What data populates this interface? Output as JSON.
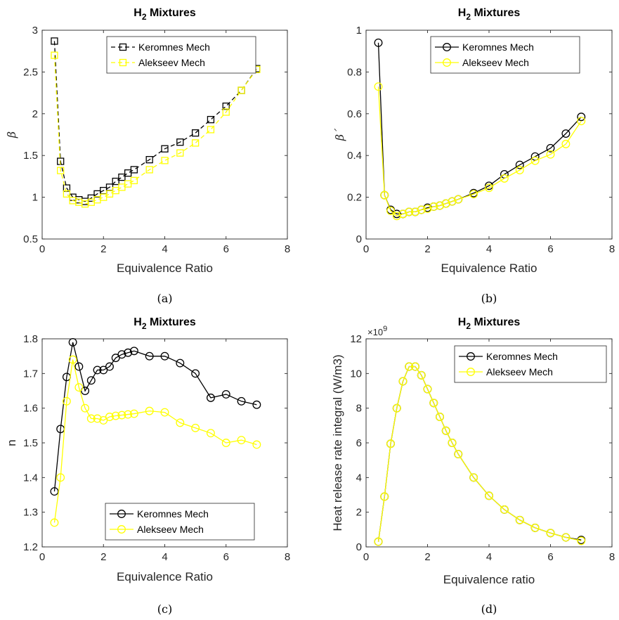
{
  "chart_data": [
    {
      "id": "a",
      "type": "line",
      "title": "H",
      "title_sub": "2",
      "title_rest": " Mixtures",
      "xlabel": "Equivalence Ratio",
      "ylabel": "β",
      "xlim": [
        0,
        8
      ],
      "ylim": [
        0.5,
        3
      ],
      "xticks": [
        0,
        2,
        4,
        6,
        8
      ],
      "yticks": [
        0.5,
        1,
        1.5,
        2,
        2.5,
        3
      ],
      "ytick_labels": [
        "0.5",
        "1",
        "1.5",
        "2",
        "2.5",
        "3"
      ],
      "xtick_labels": [
        "0",
        "2",
        "4",
        "6",
        "8"
      ],
      "legend_position": "top-right",
      "caption": "(a)",
      "x": [
        0.4,
        0.6,
        0.8,
        1.0,
        1.2,
        1.4,
        1.6,
        1.8,
        2.0,
        2.2,
        2.4,
        2.6,
        2.8,
        3.0,
        3.5,
        4.0,
        4.5,
        5.0,
        5.5,
        6.0,
        6.5,
        7.0
      ],
      "series": [
        {
          "name": "Keromnes Mech",
          "color": "#000000",
          "line": "dashed",
          "marker": "square",
          "values": [
            2.87,
            1.43,
            1.11,
            1.0,
            0.97,
            0.95,
            0.99,
            1.04,
            1.08,
            1.12,
            1.19,
            1.24,
            1.29,
            1.33,
            1.45,
            1.58,
            1.66,
            1.77,
            1.93,
            2.09,
            2.28,
            2.54
          ]
        },
        {
          "name": "Alekseev Mech",
          "color": "#FFFF00",
          "line": "dashed",
          "marker": "square",
          "values": [
            2.7,
            1.32,
            1.04,
            0.96,
            0.94,
            0.92,
            0.94,
            0.97,
            1.0,
            1.04,
            1.08,
            1.12,
            1.16,
            1.2,
            1.33,
            1.44,
            1.53,
            1.65,
            1.81,
            2.02,
            2.28,
            2.53
          ]
        }
      ]
    },
    {
      "id": "b",
      "type": "line",
      "title": "H",
      "title_sub": "2",
      "title_rest": " Mixtures",
      "xlabel": "Equivalence Ratio",
      "ylabel": "β´",
      "xlim": [
        0,
        8
      ],
      "ylim": [
        0,
        1
      ],
      "xticks": [
        0,
        2,
        4,
        6,
        8
      ],
      "yticks": [
        0,
        0.2,
        0.4,
        0.6,
        0.8,
        1
      ],
      "ytick_labels": [
        "0",
        "0.2",
        "0.4",
        "0.6",
        "0.8",
        "1"
      ],
      "xtick_labels": [
        "0",
        "2",
        "4",
        "6",
        "8"
      ],
      "legend_position": "top-right",
      "caption": "(b)",
      "x": [
        0.4,
        0.6,
        0.8,
        1.0,
        1.2,
        1.4,
        1.6,
        1.8,
        2.0,
        2.2,
        2.4,
        2.6,
        2.8,
        3.0,
        3.5,
        4.0,
        4.5,
        5.0,
        5.5,
        6.0,
        6.5,
        7.0
      ],
      "series": [
        {
          "name": "Keromnes Mech",
          "color": "#000000",
          "line": "solid",
          "marker": "circle",
          "values": [
            0.94,
            0.21,
            0.14,
            0.12,
            0.12,
            0.13,
            0.13,
            0.14,
            0.15,
            0.155,
            0.16,
            0.17,
            0.18,
            0.19,
            0.22,
            0.255,
            0.31,
            0.355,
            0.395,
            0.435,
            0.505,
            0.585
          ]
        },
        {
          "name": "Alekseev Mech",
          "color": "#FFFF00",
          "line": "solid",
          "marker": "circle",
          "values": [
            0.73,
            0.21,
            0.135,
            0.11,
            0.12,
            0.13,
            0.13,
            0.14,
            0.145,
            0.155,
            0.16,
            0.17,
            0.18,
            0.19,
            0.215,
            0.245,
            0.29,
            0.33,
            0.375,
            0.405,
            0.455,
            0.565
          ]
        }
      ]
    },
    {
      "id": "c",
      "type": "line",
      "title": "H",
      "title_sub": "2",
      "title_rest": " Mixtures",
      "xlabel": "Equivalence Ratio",
      "ylabel": "n",
      "xlim": [
        0,
        8
      ],
      "ylim": [
        1.2,
        1.8
      ],
      "xticks": [
        0,
        2,
        4,
        6,
        8
      ],
      "yticks": [
        1.2,
        1.3,
        1.4,
        1.5,
        1.6,
        1.7,
        1.8
      ],
      "ytick_labels": [
        "1.2",
        "1.3",
        "1.4",
        "1.5",
        "1.6",
        "1.7",
        "1.8"
      ],
      "xtick_labels": [
        "0",
        "2",
        "4",
        "6",
        "8"
      ],
      "legend_position": "bottom-right",
      "caption": "(c)",
      "x": [
        0.4,
        0.6,
        0.8,
        1.0,
        1.2,
        1.4,
        1.6,
        1.8,
        2.0,
        2.2,
        2.4,
        2.6,
        2.8,
        3.0,
        3.5,
        4.0,
        4.5,
        5.0,
        5.5,
        6.0,
        6.5,
        7.0
      ],
      "series": [
        {
          "name": "Keromnes Mech",
          "color": "#000000",
          "line": "solid",
          "marker": "circle",
          "values": [
            1.36,
            1.54,
            1.69,
            1.79,
            1.72,
            1.65,
            1.68,
            1.71,
            1.71,
            1.72,
            1.745,
            1.755,
            1.76,
            1.765,
            1.75,
            1.75,
            1.73,
            1.7,
            1.63,
            1.64,
            1.62,
            1.61
          ]
        },
        {
          "name": "Alekseev Mech",
          "color": "#FFFF00",
          "line": "solid",
          "marker": "circle",
          "values": [
            1.27,
            1.4,
            1.62,
            1.74,
            1.66,
            1.6,
            1.57,
            1.57,
            1.565,
            1.575,
            1.578,
            1.58,
            1.582,
            1.584,
            1.592,
            1.588,
            1.558,
            1.543,
            1.528,
            1.5,
            1.508,
            1.495
          ]
        }
      ]
    },
    {
      "id": "d",
      "type": "line",
      "title": "H",
      "title_sub": "2",
      "title_rest": " Mixtures",
      "xlabel": "Equivalence ratio",
      "ylabel": "Heat release rate integral (W/m3)",
      "y_exponent_base": "×10",
      "y_exponent_power": "9",
      "xlim": [
        0,
        8
      ],
      "ylim": [
        0,
        12
      ],
      "xticks": [
        0,
        2,
        4,
        6,
        8
      ],
      "yticks": [
        0,
        2,
        4,
        6,
        8,
        10,
        12
      ],
      "ytick_labels": [
        "0",
        "2",
        "4",
        "6",
        "8",
        "10",
        "12"
      ],
      "xtick_labels": [
        "0",
        "2",
        "4",
        "6",
        "8"
      ],
      "legend_position": "top-right",
      "caption": "(d)",
      "x": [
        0.4,
        0.6,
        0.8,
        1.0,
        1.2,
        1.4,
        1.6,
        1.8,
        2.0,
        2.2,
        2.4,
        2.6,
        2.8,
        3.0,
        3.5,
        4.0,
        4.5,
        5.0,
        5.5,
        6.0,
        6.5,
        7.0
      ],
      "series": [
        {
          "name": "Keromnes Mech",
          "color": "#000000",
          "line": "solid",
          "marker": "circle",
          "values": [
            0.3,
            2.9,
            5.95,
            8.0,
            9.55,
            10.4,
            10.4,
            9.9,
            9.1,
            8.3,
            7.5,
            6.7,
            6.0,
            5.35,
            4.0,
            2.95,
            2.15,
            1.55,
            1.1,
            0.8,
            0.55,
            0.4
          ]
        },
        {
          "name": "Alekseev Mech",
          "color": "#FFFF00",
          "line": "solid",
          "marker": "circle",
          "values": [
            0.3,
            2.9,
            5.95,
            8.0,
            9.55,
            10.4,
            10.4,
            9.9,
            9.1,
            8.3,
            7.5,
            6.7,
            6.0,
            5.35,
            4.0,
            2.95,
            2.15,
            1.55,
            1.1,
            0.8,
            0.55,
            0.35
          ]
        }
      ]
    }
  ]
}
